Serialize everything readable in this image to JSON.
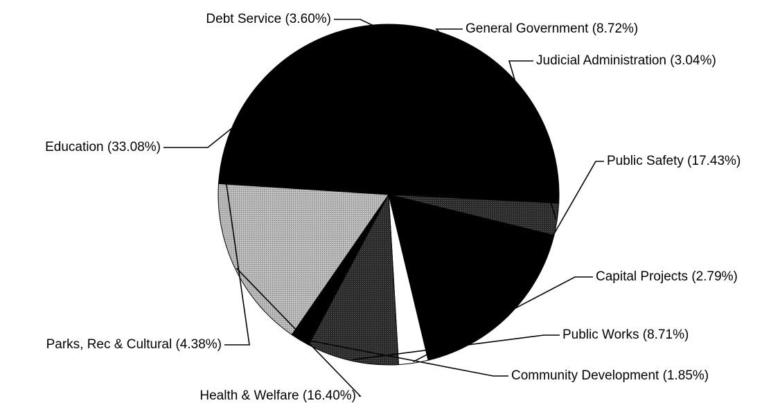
{
  "chart_data": {
    "type": "pie",
    "title": "",
    "slices": [
      {
        "name": "General Government",
        "value": 8.72,
        "label": "General Government (8.72%)",
        "color": "#000000",
        "pattern": "solid"
      },
      {
        "name": "Judicial Administration",
        "value": 3.04,
        "label": "Judicial Administration (3.04%)",
        "color": "#3a3a3a",
        "pattern": "dots"
      },
      {
        "name": "Public Safety",
        "value": 17.43,
        "label": "Public Safety (17.43%)",
        "color": "#000000",
        "pattern": "solid"
      },
      {
        "name": "Capital Projects",
        "value": 2.79,
        "label": "Capital Projects (2.79%)",
        "color": "#ffffff",
        "pattern": "solid"
      },
      {
        "name": "Public Works",
        "value": 8.71,
        "label": "Public Works (8.71%)",
        "color": "#2e2e2e",
        "pattern": "dots"
      },
      {
        "name": "Community Development",
        "value": 1.85,
        "label": "Community Development (1.85%)",
        "color": "#000000",
        "pattern": "solid"
      },
      {
        "name": "Health & Welfare",
        "value": 16.4,
        "label": "Health & Welfare (16.40%)",
        "color": "#a8a8a8",
        "pattern": "dots"
      },
      {
        "name": "Parks, Rec & Cultural",
        "value": 4.38,
        "label": "Parks, Rec & Cultural (4.38%)",
        "color": "#000000",
        "pattern": "solid"
      },
      {
        "name": "Education",
        "value": 33.08,
        "label": "Education (33.08%)",
        "color": "#000000",
        "pattern": "solid"
      },
      {
        "name": "Debt Service",
        "value": 3.6,
        "label": "Debt Service (3.60%)",
        "color": "#000000",
        "pattern": "solid"
      }
    ]
  }
}
